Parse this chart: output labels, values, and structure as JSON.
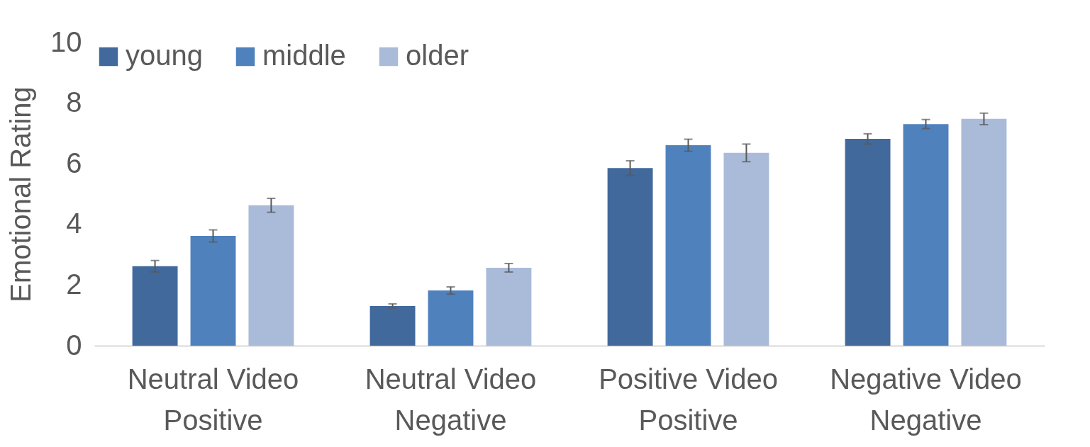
{
  "chart_data": {
    "type": "bar",
    "ylabel": "Emotional Rating",
    "categories": [
      "Neutral Video\nPositive",
      "Neutral Video\nNegative",
      "Positive Video\nPositive",
      "Negative Video\nNegative"
    ],
    "series": [
      {
        "name": "young",
        "color": "#41699c",
        "values": [
          2.62,
          1.31,
          5.86,
          6.82
        ],
        "errors": [
          0.19,
          0.07,
          0.24,
          0.17
        ]
      },
      {
        "name": "middle",
        "color": "#4f81bd",
        "values": [
          3.62,
          1.82,
          6.61,
          7.31
        ],
        "errors": [
          0.2,
          0.12,
          0.2,
          0.15
        ]
      },
      {
        "name": "older",
        "color": "#a9bbd9",
        "values": [
          4.63,
          2.57,
          6.36,
          7.48
        ],
        "errors": [
          0.23,
          0.14,
          0.29,
          0.19
        ]
      }
    ],
    "ylim": [
      0,
      10
    ],
    "yticks": [
      0,
      2,
      4,
      6,
      8,
      10
    ],
    "grid": false,
    "legend": "top"
  }
}
